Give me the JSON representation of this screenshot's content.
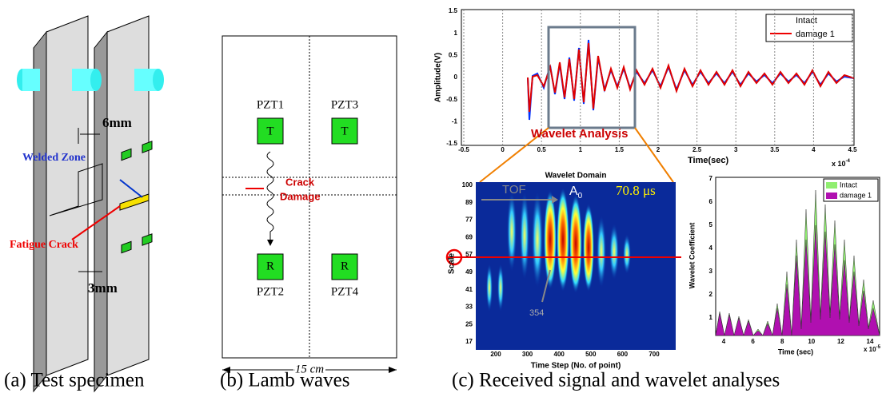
{
  "panel_a": {
    "dim_top": "6mm",
    "welded_zone": "Welded Zone",
    "fatigue_crack": "Fatigue Crack",
    "dim_bottom": "3mm",
    "caption": "(a) Test specimen"
  },
  "panel_b": {
    "pzt1": "PZT1",
    "pzt3": "PZT3",
    "t1": "T",
    "t3": "T",
    "crack": "Crack",
    "damage": "Damage",
    "r2": "R",
    "r4": "R",
    "pzt2": "PZT2",
    "pzt4": "PZT4",
    "width": "15 cm",
    "caption": "(b) Lamb waves"
  },
  "panel_c": {
    "signal": {
      "y_label": "Amplitude(V)",
      "x_label": "Time(sec)",
      "x_exp_base": "x 10",
      "x_exp": "-4",
      "yticks": [
        1.5,
        1,
        0.5,
        0,
        -0.5,
        -1,
        -1.5
      ],
      "xticks": [
        -0.5,
        0,
        0.5,
        1,
        1.5,
        2,
        2.5,
        3,
        3.5,
        4,
        4.5
      ],
      "legend": [
        "Intact",
        "damage 1"
      ],
      "annotation": "Wavelet Analysis"
    },
    "wavelet": {
      "title": "Wavelet Domain",
      "y_label": "Scale",
      "x_label": "Time Step (No. of point)",
      "yticks": [
        100,
        89,
        77,
        69,
        57,
        49,
        41,
        33,
        25,
        17
      ],
      "xticks": [
        200,
        300,
        400,
        500,
        600,
        700
      ],
      "tof": "TOF",
      "mode": "A",
      "mode_sub": "0",
      "time": "70.8 μs",
      "step": "354"
    },
    "coefficient": {
      "y_label": "Wavelet Coefficient",
      "x_label": "Time (sec)",
      "x_exp_base": "x 10",
      "x_exp": "-5",
      "yticks": [
        7,
        6,
        5,
        4,
        3,
        2,
        1
      ],
      "xticks": [
        4,
        6,
        8,
        10,
        12,
        14
      ],
      "legend": [
        "Intact",
        "damage 1"
      ]
    },
    "caption": "(c) Received signal and wavelet analyses"
  }
}
